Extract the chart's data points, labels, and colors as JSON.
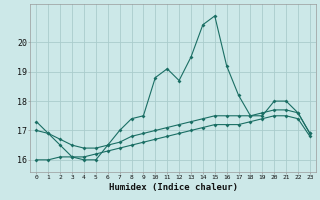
{
  "xlabel": "Humidex (Indice chaleur)",
  "bg_color": "#cce8e8",
  "grid_color": "#aacccc",
  "line_color": "#1a6e64",
  "x_values": [
    0,
    1,
    2,
    3,
    4,
    5,
    6,
    7,
    8,
    9,
    10,
    11,
    12,
    13,
    14,
    15,
    16,
    17,
    18,
    19,
    20,
    21,
    22,
    23
  ],
  "series1": [
    17.3,
    16.9,
    16.5,
    16.1,
    16.0,
    16.0,
    16.5,
    17.0,
    17.4,
    17.5,
    18.8,
    19.1,
    18.7,
    19.5,
    20.6,
    20.9,
    19.2,
    18.2,
    17.5,
    17.5,
    18.0,
    18.0,
    17.6,
    16.9
  ],
  "series2": [
    17.0,
    16.9,
    16.7,
    16.5,
    16.4,
    16.4,
    16.5,
    16.6,
    16.8,
    16.9,
    17.0,
    17.1,
    17.2,
    17.3,
    17.4,
    17.5,
    17.5,
    17.5,
    17.5,
    17.6,
    17.7,
    17.7,
    17.6,
    16.9
  ],
  "series3": [
    16.0,
    16.0,
    16.1,
    16.1,
    16.1,
    16.2,
    16.3,
    16.4,
    16.5,
    16.6,
    16.7,
    16.8,
    16.9,
    17.0,
    17.1,
    17.2,
    17.2,
    17.2,
    17.3,
    17.4,
    17.5,
    17.5,
    17.4,
    16.8
  ],
  "ylim": [
    15.6,
    21.3
  ],
  "yticks": [
    16,
    17,
    18,
    19,
    20
  ],
  "xtick_labels": [
    "0",
    "1",
    "2",
    "3",
    "4",
    "5",
    "6",
    "7",
    "8",
    "9",
    "10",
    "11",
    "12",
    "13",
    "14",
    "15",
    "16",
    "17",
    "18",
    "19",
    "20",
    "21",
    "22",
    "23"
  ]
}
